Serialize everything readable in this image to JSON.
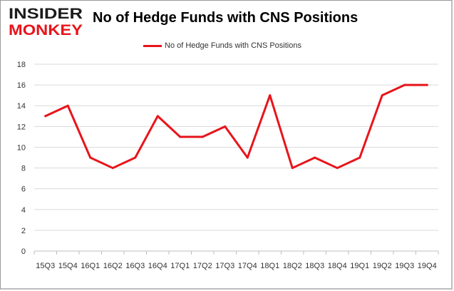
{
  "logo": {
    "line1": "INSIDER",
    "line2": "MONKEY",
    "color_dark": "#1b1b1b",
    "color_accent": "#e8141b"
  },
  "chart_data": {
    "type": "line",
    "title": "No of Hedge Funds with CNS Positions",
    "categories": [
      "15Q3",
      "15Q4",
      "16Q1",
      "16Q2",
      "16Q3",
      "16Q4",
      "17Q1",
      "17Q2",
      "17Q3",
      "17Q4",
      "18Q1",
      "18Q2",
      "18Q3",
      "18Q4",
      "19Q1",
      "19Q2",
      "19Q3",
      "19Q4"
    ],
    "series": [
      {
        "name": "No of Hedge Funds with CNS Positions",
        "values": [
          13,
          14,
          9,
          8,
          9,
          13,
          11,
          11,
          12,
          9,
          15,
          8,
          9,
          8,
          9,
          15,
          16,
          16
        ],
        "color": "#e8141b"
      }
    ],
    "ylim": [
      0,
      18
    ],
    "yticks": [
      0,
      2,
      4,
      6,
      8,
      10,
      12,
      14,
      16,
      18
    ],
    "grid": true,
    "legend_position": "top-center"
  }
}
